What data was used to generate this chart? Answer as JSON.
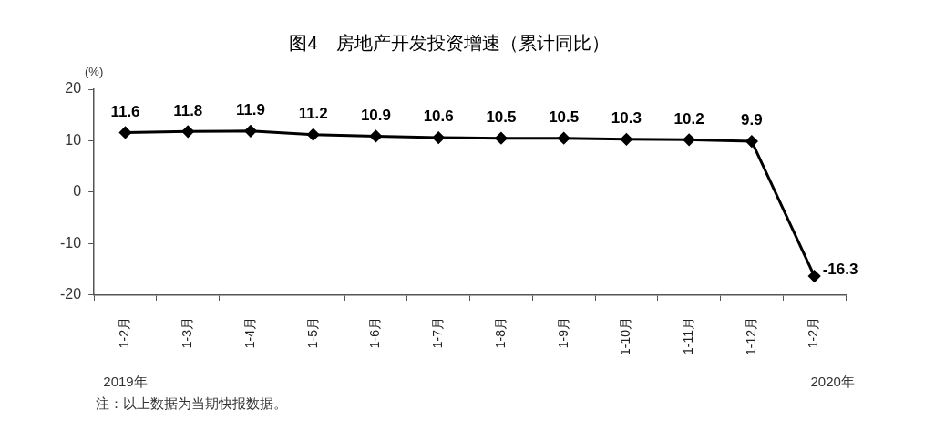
{
  "chart_data": {
    "type": "line",
    "title": "图4　房地产开发投资增速（累计同比）",
    "ylabel": "(%)",
    "categories": [
      "1-2月",
      "1-3月",
      "1-4月",
      "1-5月",
      "1-6月",
      "1-7月",
      "1-8月",
      "1-9月",
      "1-10月",
      "1-11月",
      "1-12月",
      "1-2月"
    ],
    "series": [
      {
        "color": "#000000",
        "values": [
          11.6,
          11.8,
          11.9,
          11.2,
          10.9,
          10.6,
          10.5,
          10.5,
          10.3,
          10.2,
          9.9,
          -16.3
        ]
      }
    ],
    "ylim": [
      -20,
      20
    ],
    "yticks": [
      -20,
      -10,
      0,
      10,
      20
    ],
    "grid": false,
    "legend": false,
    "marker": "diamond",
    "line_style": "solid",
    "data_labels": true,
    "annotations": [
      "2019年",
      "2020年",
      "注：以上数据为当期快报数据。"
    ]
  }
}
